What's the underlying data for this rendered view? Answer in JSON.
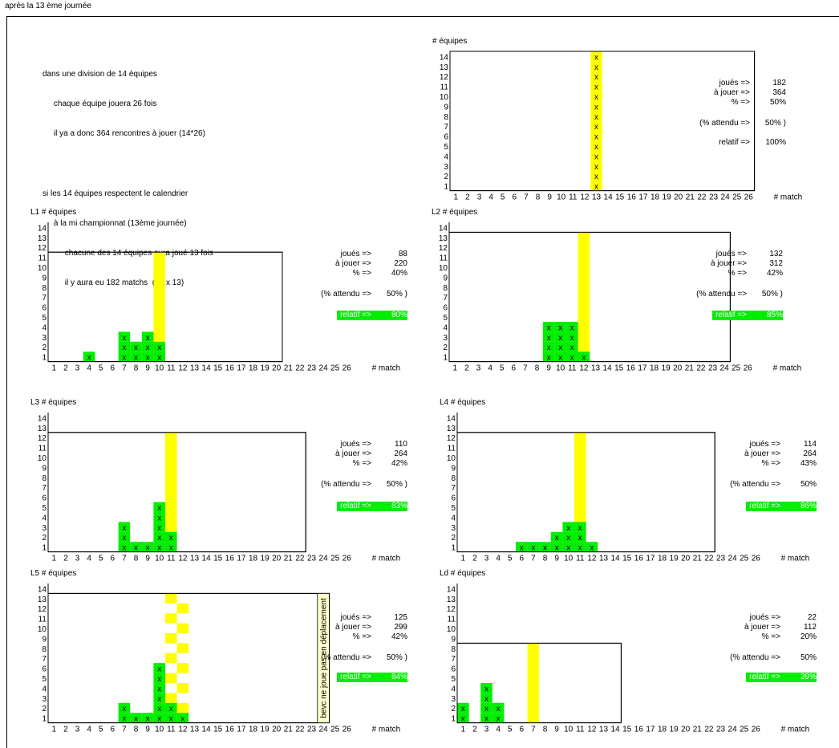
{
  "header": {
    "title": "après la  13 ème journée"
  },
  "intro": {
    "lines": [
      "dans une division de 14 équipes",
      "     chaque équipe jouera 26 fois",
      "     il ya a donc 364 rencontres à jouer (14*26)",
      "",
      "si les 14 équipes respectent le calendrier",
      "     à la mi championnat (13ème journée)",
      "          chacune des 14 équipes aura joué 13 fois",
      "          il y aura eu 182 matchs  (14 x 13)"
    ]
  },
  "colors": {
    "played": "#00ee00",
    "current_day": "#ffff00",
    "note_bg": "#ffffcc",
    "note_text": "#cc0000"
  },
  "chart_data": [
    {
      "id": "overview",
      "type": "heatmap",
      "title": "# équipes",
      "ylabel": "# équipes",
      "xlabel": "# match",
      "x_categories": [
        "1",
        "2",
        "3",
        "4",
        "5",
        "6",
        "7",
        "8",
        "9",
        "10",
        "11",
        "12",
        "13",
        "14",
        "15",
        "16",
        "17",
        "18",
        "19",
        "20",
        "21",
        "22",
        "23",
        "24",
        "25",
        "26"
      ],
      "y_categories": [
        "1",
        "2",
        "3",
        "4",
        "5",
        "6",
        "7",
        "8",
        "9",
        "10",
        "11",
        "12",
        "13",
        "14"
      ],
      "frame_top": 14,
      "frame_cols": 26,
      "current_day": 13,
      "played_counts": [],
      "x_on_current_day": 14,
      "checker": false,
      "stats": {
        "played_label": "joués =>",
        "played": "182",
        "to_play_label": "à jouer =>",
        "to_play": "364",
        "pct_label": "% =>",
        "pct": "50%",
        "expected_label": "(% attendu =>",
        "expected": "50% )",
        "relative_label": "relatif =>",
        "relative": "100%",
        "relative_highlight": false
      }
    },
    {
      "id": "L1",
      "type": "heatmap",
      "title": "L1 # équipes",
      "xlabel": "# match",
      "x_categories": [
        "1",
        "2",
        "3",
        "4",
        "5",
        "6",
        "7",
        "8",
        "9",
        "10",
        "11",
        "12",
        "13",
        "14",
        "15",
        "16",
        "17",
        "18",
        "19",
        "20",
        "21",
        "22",
        "23",
        "24",
        "25",
        "26"
      ],
      "y_categories": [
        "1",
        "2",
        "3",
        "4",
        "5",
        "6",
        "7",
        "8",
        "9",
        "10",
        "11",
        "12",
        "13",
        "14"
      ],
      "frame_top": 11,
      "frame_cols": 20,
      "current_day": 10,
      "played_counts": [
        0,
        0,
        0,
        1,
        0,
        0,
        3,
        2,
        3,
        2
      ],
      "checker": false,
      "stats": {
        "played_label": "joués =>",
        "played": "88",
        "to_play_label": "à jouer =>",
        "to_play": "220",
        "pct_label": "% =>",
        "pct": "40%",
        "expected_label": "(% attendu =>",
        "expected": "50% )",
        "relative_label": "relatif =>",
        "relative": "80%",
        "relative_highlight": true
      }
    },
    {
      "id": "L2",
      "type": "heatmap",
      "title": "L2 # équipes",
      "xlabel": "# match",
      "x_categories": [
        "1",
        "2",
        "3",
        "4",
        "5",
        "6",
        "7",
        "8",
        "9",
        "10",
        "11",
        "12",
        "13",
        "14",
        "15",
        "16",
        "17",
        "18",
        "19",
        "20",
        "21",
        "22",
        "23",
        "24",
        "25",
        "26"
      ],
      "y_categories": [
        "1",
        "2",
        "3",
        "4",
        "5",
        "6",
        "7",
        "8",
        "9",
        "10",
        "11",
        "12",
        "13",
        "14"
      ],
      "frame_top": 13,
      "frame_cols": 24,
      "current_day": 12,
      "played_counts": [
        0,
        0,
        0,
        0,
        0,
        0,
        0,
        0,
        4,
        4,
        4,
        1
      ],
      "checker": false,
      "stats": {
        "played_label": "joués =>",
        "played": "132",
        "to_play_label": "à jouer =>",
        "to_play": "312",
        "pct_label": "% =>",
        "pct": "42%",
        "expected_label": "(% attendu =>",
        "expected": "50% )",
        "relative_label": "relatif =>",
        "relative": "85%",
        "relative_highlight": true
      }
    },
    {
      "id": "L3",
      "type": "heatmap",
      "title": "L3 # équipes",
      "xlabel": "# match",
      "x_categories": [
        "1",
        "2",
        "3",
        "4",
        "5",
        "6",
        "7",
        "8",
        "9",
        "10",
        "11",
        "12",
        "13",
        "14",
        "15",
        "16",
        "17",
        "18",
        "19",
        "20",
        "21",
        "22",
        "23",
        "24",
        "25",
        "26"
      ],
      "y_categories": [
        "1",
        "2",
        "3",
        "4",
        "5",
        "6",
        "7",
        "8",
        "9",
        "10",
        "11",
        "12",
        "13",
        "14"
      ],
      "frame_top": 12,
      "frame_cols": 22,
      "current_day": 11,
      "played_counts": [
        0,
        0,
        0,
        0,
        0,
        0,
        3,
        1,
        1,
        5,
        2
      ],
      "checker": false,
      "stats": {
        "played_label": "joués =>",
        "played": "110",
        "to_play_label": "à jouer =>",
        "to_play": "264",
        "pct_label": "% =>",
        "pct": "42%",
        "expected_label": "(% attendu =>",
        "expected": "50% )",
        "relative_label": "relatif =>",
        "relative": "83%",
        "relative_highlight": true
      }
    },
    {
      "id": "L4",
      "type": "heatmap",
      "title": "L4 # équipes",
      "xlabel": "# match",
      "x_categories": [
        "1",
        "2",
        "3",
        "4",
        "5",
        "6",
        "7",
        "8",
        "9",
        "10",
        "11",
        "12",
        "13",
        "14",
        "15",
        "16",
        "17",
        "18",
        "19",
        "20",
        "21",
        "22",
        "23",
        "24",
        "25",
        "26"
      ],
      "y_categories": [
        "1",
        "2",
        "3",
        "4",
        "5",
        "6",
        "7",
        "8",
        "9",
        "10",
        "11",
        "12",
        "13",
        "14"
      ],
      "frame_top": 12,
      "frame_cols": 22,
      "current_day": 11,
      "played_counts": [
        0,
        0,
        0,
        0,
        0,
        1,
        1,
        1,
        2,
        3,
        3,
        1
      ],
      "checker": false,
      "stats": {
        "played_label": "joués =>",
        "played": "114",
        "to_play_label": "à jouer =>",
        "to_play": "264",
        "pct_label": "% =>",
        "pct": "43%",
        "expected_label": "(% attendu =>",
        "expected": "50%",
        "relative_label": "relatif =>",
        "relative": "86%",
        "relative_highlight": true
      }
    },
    {
      "id": "L5",
      "type": "heatmap",
      "title": "L5 # équipes",
      "xlabel": "# match",
      "x_categories": [
        "1",
        "2",
        "3",
        "4",
        "5",
        "6",
        "7",
        "8",
        "9",
        "10",
        "11",
        "12",
        "13",
        "14",
        "15",
        "16",
        "17",
        "18",
        "19",
        "20",
        "21",
        "22",
        "23",
        "24",
        "25",
        "26"
      ],
      "y_categories": [
        "1",
        "2",
        "3",
        "4",
        "5",
        "6",
        "7",
        "8",
        "9",
        "10",
        "11",
        "12",
        "13",
        "14"
      ],
      "frame_top": 13,
      "frame_cols": 24,
      "current_day": 11,
      "played_counts": [
        0,
        0,
        0,
        0,
        0,
        0,
        2,
        1,
        1,
        6,
        2,
        1
      ],
      "checker": true,
      "note": "bevc ne joue pas en déplacement",
      "stats": {
        "played_label": "joués =>",
        "played": "125",
        "to_play_label": "à jouer =>",
        "to_play": "299",
        "pct_label": "% =>",
        "pct": "42%",
        "expected_label": "(% attendu =>",
        "expected": "50% )",
        "relative_label": "relatif =>",
        "relative": "84%",
        "relative_highlight": true
      }
    },
    {
      "id": "Ld",
      "type": "heatmap",
      "title": "Ld # équipes",
      "xlabel": "# match",
      "x_categories": [
        "1",
        "2",
        "3",
        "4",
        "5",
        "6",
        "7",
        "8",
        "9",
        "10",
        "11",
        "12",
        "13",
        "14",
        "15",
        "16",
        "17",
        "18",
        "19",
        "20",
        "21",
        "22",
        "23",
        "24",
        "25",
        "26"
      ],
      "y_categories": [
        "1",
        "2",
        "3",
        "4",
        "5",
        "6",
        "7",
        "8",
        "9",
        "10",
        "11",
        "12",
        "13",
        "14"
      ],
      "frame_top": 8,
      "frame_cols": 14,
      "current_day": 7,
      "played_counts": [
        2,
        0,
        4,
        2
      ],
      "checker": false,
      "stats": {
        "played_label": "joués =>",
        "played": "22",
        "to_play_label": "à jouer =>",
        "to_play": "112",
        "pct_label": "% =>",
        "pct": "20%",
        "expected_label": "(% attendu =>",
        "expected": "50%",
        "relative_label": "relatif =>",
        "relative": "39%",
        "relative_highlight": true
      }
    }
  ]
}
